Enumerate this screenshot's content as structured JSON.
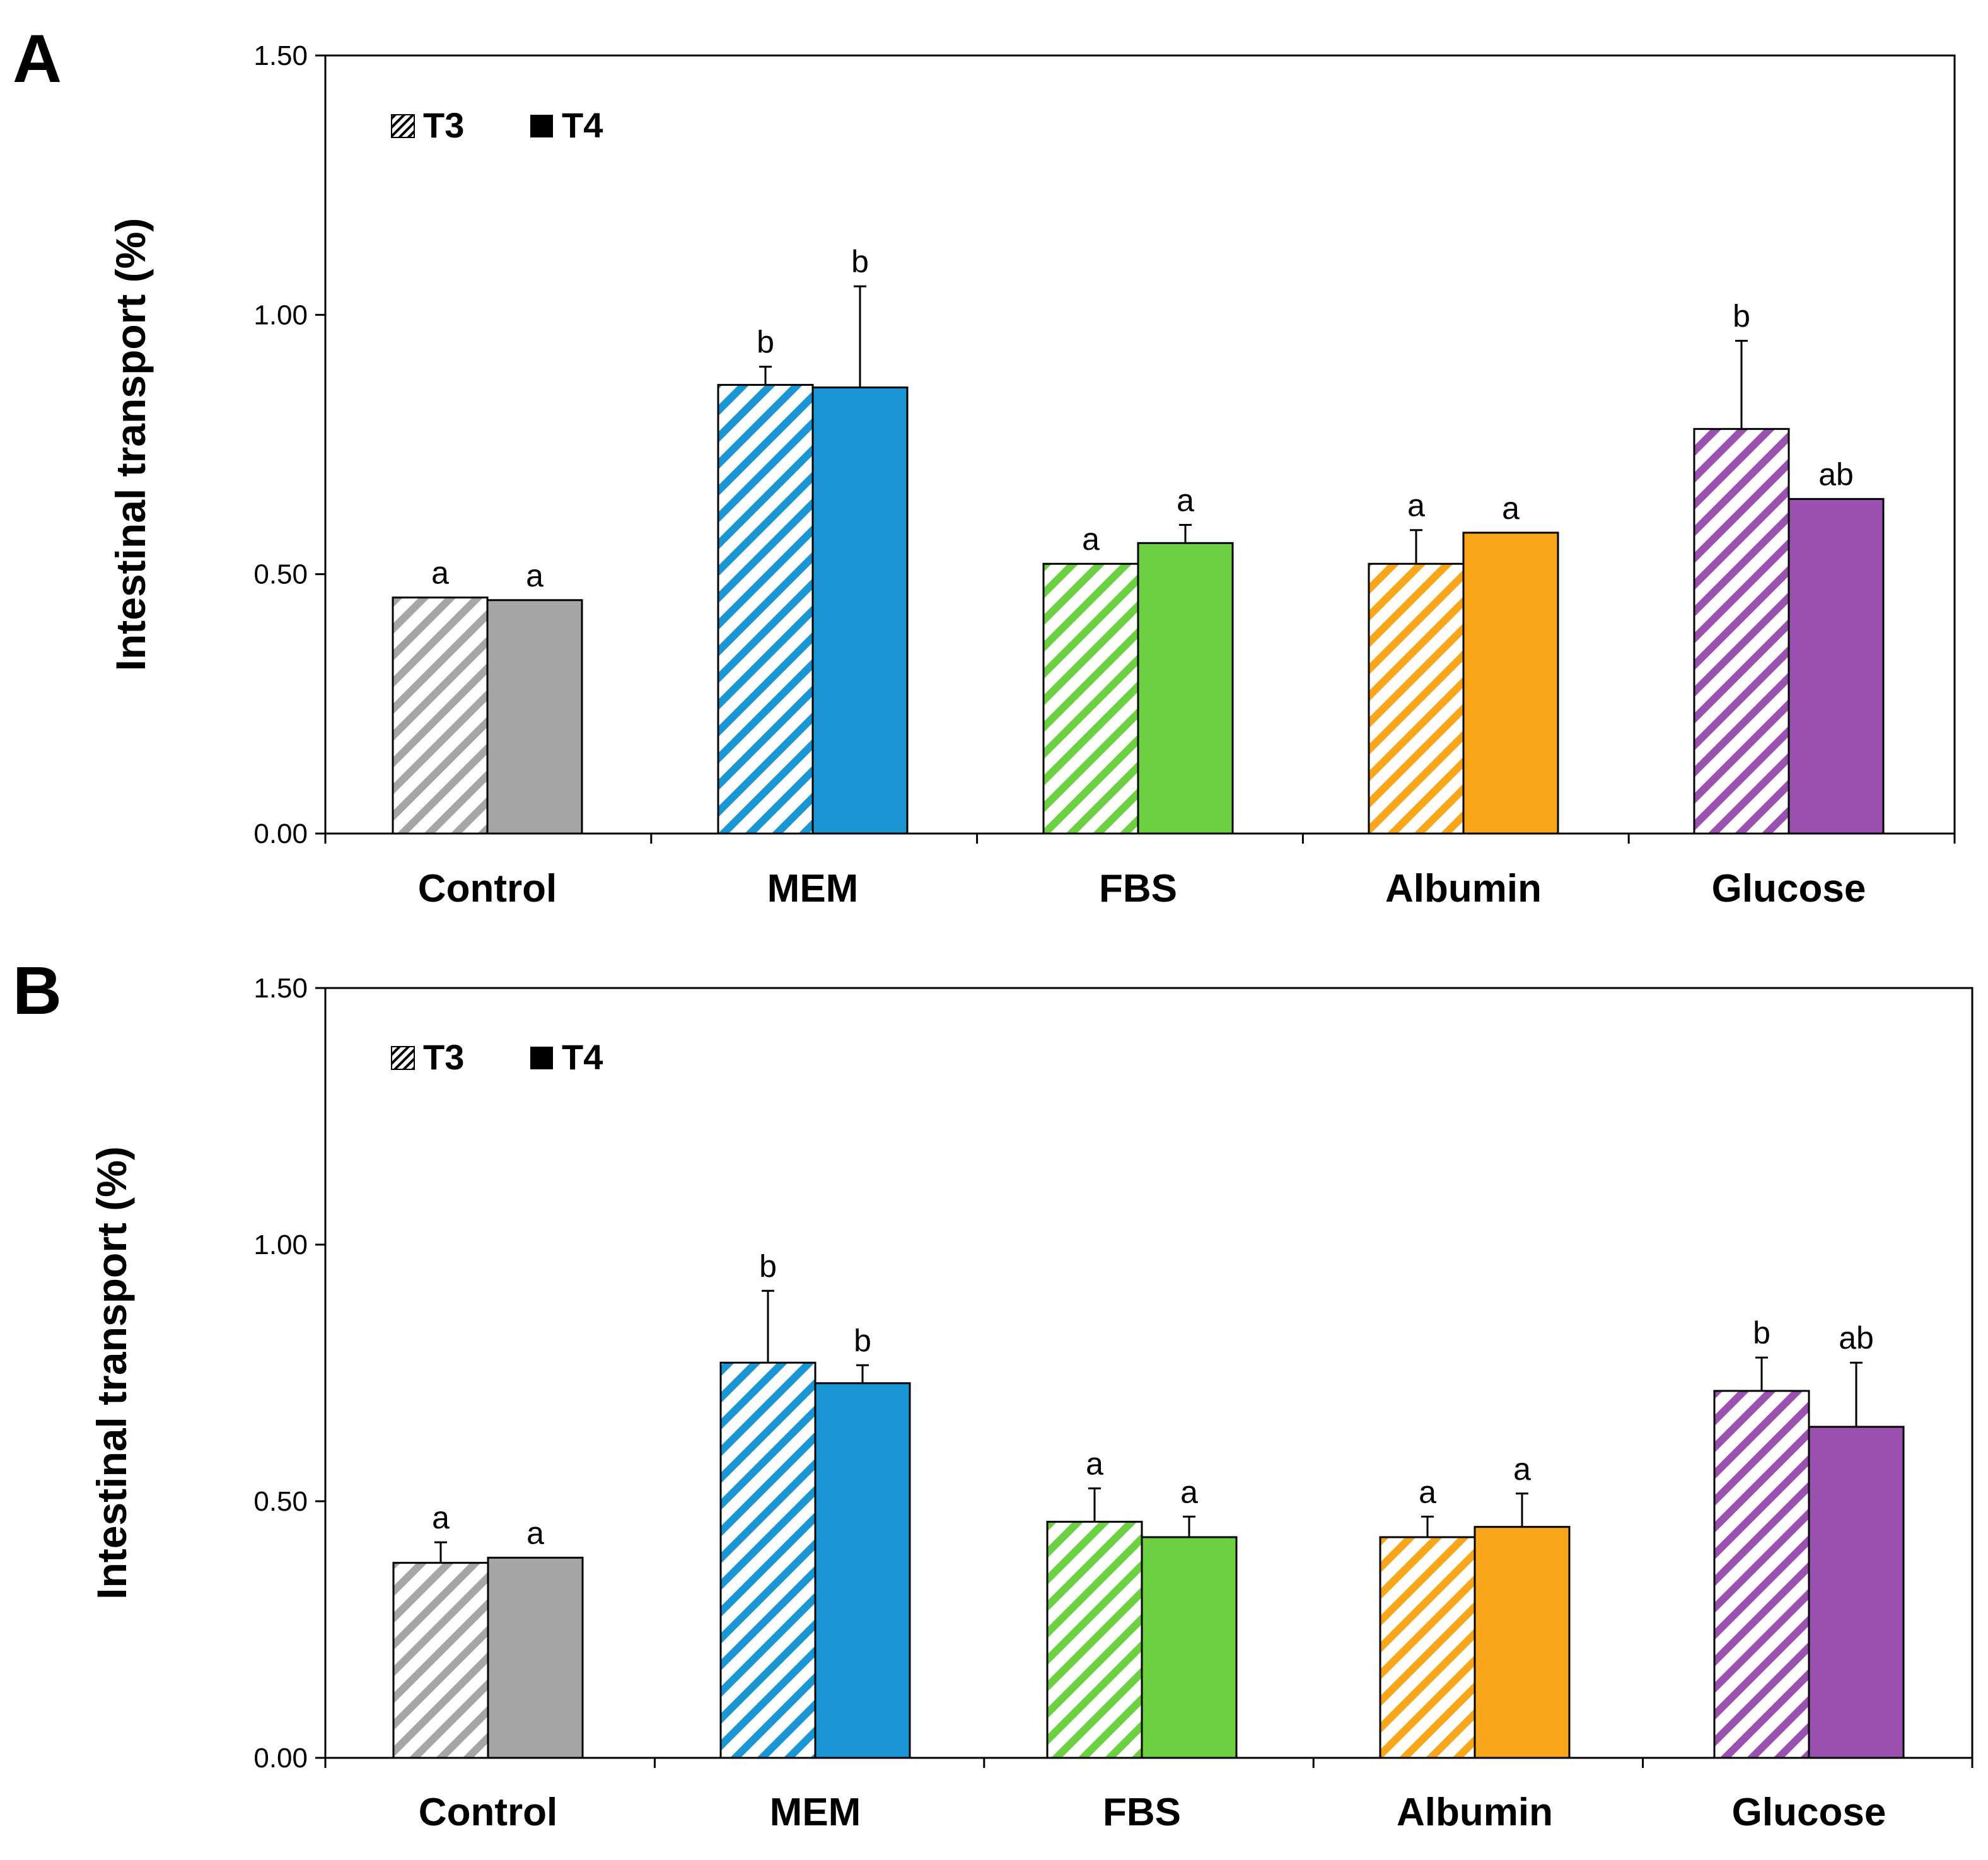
{
  "chart_data": [
    {
      "panel": "A",
      "type": "bar",
      "ylabel": "Intestinal transport (%)",
      "ylim": [
        0,
        1.5
      ],
      "yticks": [
        "0.00",
        "0.50",
        "1.00",
        "1.50"
      ],
      "categories": [
        "Control",
        "MEM",
        "FBS",
        "Albumin",
        "Glucose"
      ],
      "legend": [
        "T3",
        "T4"
      ],
      "series": [
        {
          "name": "T3",
          "style": "hatched",
          "values": [
            0.455,
            0.865,
            0.52,
            0.52,
            0.78
          ],
          "errors": [
            0.0,
            0.035,
            0.0,
            0.065,
            0.17
          ],
          "labels": [
            "a",
            "b",
            "a",
            "a",
            "b"
          ]
        },
        {
          "name": "T4",
          "style": "solid",
          "values": [
            0.45,
            0.86,
            0.56,
            0.58,
            0.645
          ],
          "errors": [
            0.0,
            0.195,
            0.035,
            0.0,
            0.0
          ],
          "labels": [
            "a",
            "b",
            "a",
            "a",
            "ab"
          ]
        }
      ]
    },
    {
      "panel": "B",
      "type": "bar",
      "ylabel": "Intestinal transport (%)",
      "ylim": [
        0,
        1.5
      ],
      "yticks": [
        "0.00",
        "0.50",
        "1.00",
        "1.50"
      ],
      "categories": [
        "Control",
        "MEM",
        "FBS",
        "Albumin",
        "Glucose"
      ],
      "legend": [
        "T3",
        "T4"
      ],
      "series": [
        {
          "name": "T3",
          "style": "hatched",
          "values": [
            0.38,
            0.77,
            0.46,
            0.43,
            0.715
          ],
          "errors": [
            0.04,
            0.14,
            0.065,
            0.04,
            0.065
          ],
          "labels": [
            "a",
            "b",
            "a",
            "a",
            "b"
          ]
        },
        {
          "name": "T4",
          "style": "solid",
          "values": [
            0.39,
            0.73,
            0.43,
            0.45,
            0.645
          ],
          "errors": [
            0.0,
            0.035,
            0.04,
            0.065,
            0.125
          ],
          "labels": [
            "a",
            "b",
            "a",
            "a",
            "ab"
          ]
        }
      ]
    }
  ],
  "colors": {
    "Control": "#a6a6a6",
    "MEM": "#1a96d4",
    "FBS": "#6bd140",
    "Albumin": "#faa61a",
    "Glucose": "#9b51b0",
    "axis": "#000000"
  }
}
